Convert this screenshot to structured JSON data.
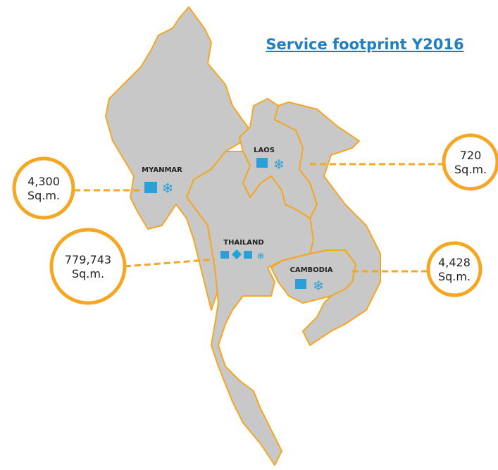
{
  "title": "Service footprint Y2016",
  "countries": [
    {
      "name": "MYANMAR",
      "area": "4,300",
      "unit": "Sq.m."
    },
    {
      "name": "LAOS",
      "area": "720",
      "unit": "Sq.m."
    },
    {
      "name": "THAILAND",
      "area": "779,743",
      "unit": "Sq.m."
    },
    {
      "name": "CAMBODIA",
      "area": "4,428",
      "unit": "Sq.m."
    }
  ]
}
